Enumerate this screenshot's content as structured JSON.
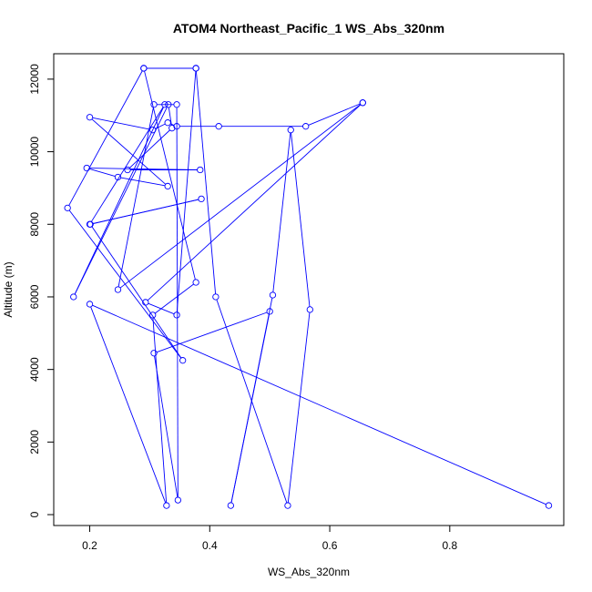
{
  "chart_data": {
    "type": "line",
    "title": "ATOM4 Northeast_Pacific_1 WS_Abs_320nm",
    "xlabel": "WS_Abs_320nm",
    "ylabel": "Altitude (m)",
    "xlim": [
      0.14,
      0.99
    ],
    "ylim": [
      -300,
      12700
    ],
    "x_ticks": [
      0.2,
      0.4,
      0.6,
      0.8
    ],
    "x_tick_labels": [
      "0.2",
      "0.4",
      "0.6",
      "0.8"
    ],
    "y_ticks": [
      0,
      2000,
      4000,
      6000,
      8000,
      10000,
      12000
    ],
    "y_tick_labels": [
      "0",
      "2000",
      "4000",
      "6000",
      "8000",
      "10000",
      "12000"
    ],
    "grid": false,
    "legend": "none",
    "colors": {
      "series": "#0000ff",
      "axis": "#000000"
    },
    "series": [
      {
        "x": [
          0.965,
          0.2,
          0.328,
          0.305,
          0.377,
          0.29,
          0.163,
          0.355,
          0.201,
          0.386,
          0.2,
          0.325,
          0.173,
          0.331,
          0.337,
          0.263,
          0.384,
          0.195,
          0.247,
          0.33,
          0.2,
          0.305,
          0.33,
          0.345,
          0.415,
          0.56,
          0.655,
          0.293,
          0.345,
          0.377,
          0.29,
          0.377,
          0.41,
          0.53,
          0.567,
          0.535,
          0.505,
          0.435,
          0.5,
          0.307,
          0.347,
          0.345,
          0.307,
          0.247,
          0.655
        ],
        "y": [
          250,
          5800,
          250,
          5500,
          6400,
          12300,
          8450,
          4250,
          8000,
          8700,
          8000,
          11300,
          6000,
          11300,
          10650,
          9500,
          9500,
          9550,
          9300,
          9050,
          10950,
          10600,
          10800,
          10700,
          10700,
          10700,
          11350,
          5850,
          5500,
          12300,
          12300,
          12300,
          6000,
          250,
          5650,
          10600,
          6050,
          250,
          5600,
          4450,
          400,
          11300,
          11300,
          6200,
          11350
        ]
      }
    ]
  }
}
